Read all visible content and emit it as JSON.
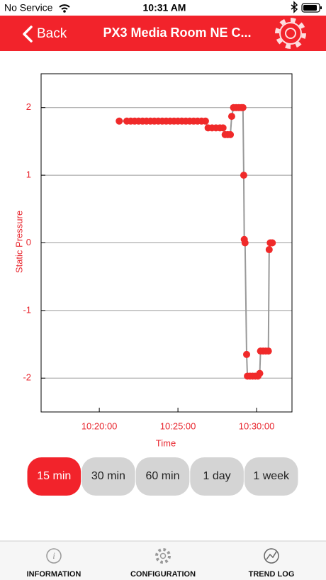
{
  "status_bar": {
    "carrier": "No Service",
    "time": "10:31 AM"
  },
  "nav_bar": {
    "back": "Back",
    "title": "PX3 Media Room NE C..."
  },
  "chart_data": {
    "type": "line",
    "x_label": "Time",
    "y_label": "Static Pressure",
    "x": [
      "10:21:16",
      "10:21:45",
      "10:22:00",
      "10:22:15",
      "10:22:30",
      "10:22:45",
      "10:23:00",
      "10:23:15",
      "10:23:30",
      "10:23:45",
      "10:24:00",
      "10:24:15",
      "10:24:30",
      "10:24:45",
      "10:25:00",
      "10:25:15",
      "10:25:30",
      "10:25:45",
      "10:26:00",
      "10:26:15",
      "10:26:30",
      "10:26:45",
      "10:26:55",
      "10:27:10",
      "10:27:25",
      "10:27:40",
      "10:27:52",
      "10:28:00",
      "10:28:10",
      "10:28:20",
      "10:28:25",
      "10:28:32",
      "10:28:42",
      "10:28:52",
      "10:29:02",
      "10:29:08",
      "10:29:11",
      "10:29:13",
      "10:29:16",
      "10:29:22",
      "10:29:25",
      "10:29:35",
      "10:29:45",
      "10:29:55",
      "10:30:05",
      "10:30:12",
      "10:30:15",
      "10:30:25",
      "10:30:35",
      "10:30:45",
      "10:30:48",
      "10:30:52",
      "10:31:00"
    ],
    "series": [
      {
        "color": "#f02a2a",
        "values": [
          1.8,
          1.8,
          1.8,
          1.8,
          1.8,
          1.8,
          1.8,
          1.8,
          1.8,
          1.8,
          1.8,
          1.8,
          1.8,
          1.8,
          1.8,
          1.8,
          1.8,
          1.8,
          1.8,
          1.8,
          1.8,
          1.8,
          1.7,
          1.7,
          1.7,
          1.7,
          1.7,
          1.6,
          1.6,
          1.6,
          1.87,
          2.0,
          2.0,
          2.0,
          2.0,
          2.0,
          1.0,
          0.05,
          0,
          -1.65,
          -1.97,
          -1.97,
          -1.97,
          -1.97,
          -1.97,
          -1.93,
          -1.6,
          -1.6,
          -1.6,
          -1.6,
          -0.1,
          0,
          0
        ]
      }
    ],
    "line_color": "#999999",
    "xlim": [
      "10:16:18",
      "10:32:15"
    ],
    "xticks": [
      "10:20:00",
      "10:25:00",
      "10:30:00"
    ],
    "ylim": [
      -2.5,
      2.5
    ],
    "yticks": [
      -2,
      -1,
      0,
      1,
      2
    ],
    "grid": true
  },
  "range_buttons": {
    "options": [
      "15 min",
      "30 min",
      "60 min",
      "1 day",
      "1 week"
    ],
    "selected": 0
  },
  "tab_bar": {
    "tabs": [
      "INFORMATION",
      "CONFIGURATION",
      "TREND LOG"
    ]
  }
}
